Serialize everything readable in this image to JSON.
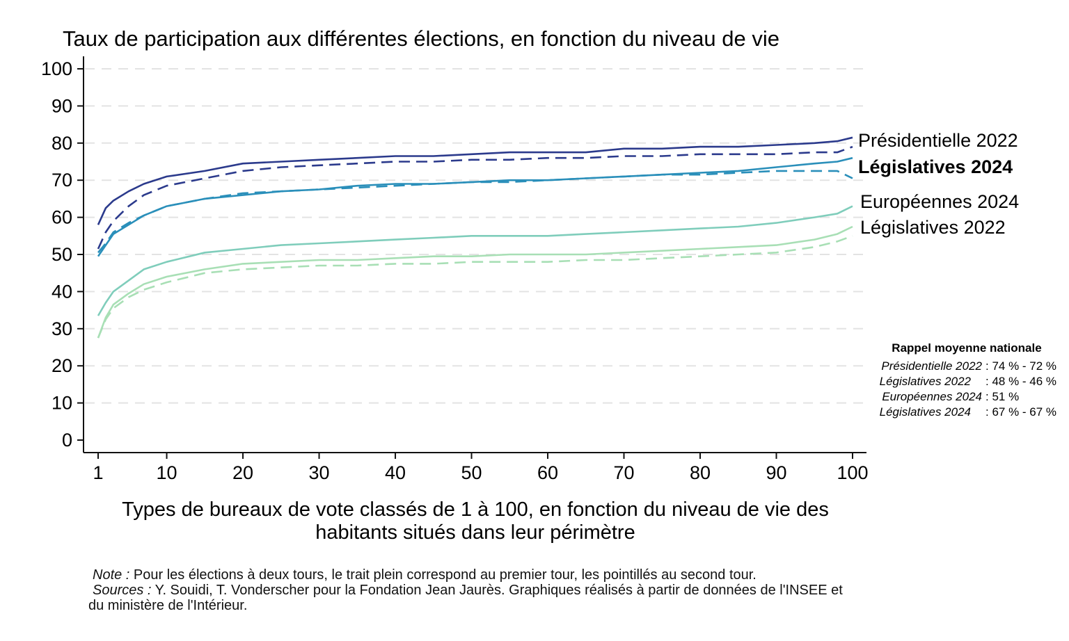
{
  "chart_data": {
    "type": "line",
    "title": "Taux de participation aux différentes élections, en fonction du niveau de vie",
    "xlabel_lines": [
      "Types de bureaux de vote classés de 1 à 100, en fonction du niveau de vie des",
      "habitants situés dans leur périmètre"
    ],
    "ylabel": "",
    "xlim": [
      1,
      100
    ],
    "ylim": [
      0,
      100
    ],
    "x_ticks": [
      1,
      10,
      20,
      30,
      40,
      50,
      60,
      70,
      80,
      90,
      100
    ],
    "y_ticks": [
      0,
      10,
      20,
      30,
      40,
      50,
      60,
      70,
      80,
      90,
      100
    ],
    "grid": "horizontal dashed",
    "series": [
      {
        "name": "Présidentielle 2022",
        "tour": "premier",
        "style": "solid",
        "color": "#2b3a8c",
        "x": [
          1,
          2,
          3,
          5,
          7,
          10,
          15,
          20,
          25,
          30,
          35,
          40,
          45,
          50,
          55,
          60,
          65,
          70,
          75,
          80,
          85,
          90,
          95,
          98,
          100
        ],
        "y": [
          58,
          62.5,
          64.5,
          67,
          69,
          71,
          72.5,
          74.5,
          75,
          75.5,
          76,
          76.5,
          76.5,
          77,
          77.5,
          77.5,
          77.5,
          78.5,
          78.5,
          79,
          79,
          79.5,
          80,
          80.5,
          81.5
        ]
      },
      {
        "name": "Présidentielle 2022",
        "tour": "second",
        "style": "dashed",
        "color": "#2b3a8c",
        "x": [
          1,
          2,
          3,
          5,
          7,
          10,
          15,
          20,
          25,
          30,
          35,
          40,
          45,
          50,
          55,
          60,
          65,
          70,
          75,
          80,
          85,
          90,
          95,
          98,
          100
        ],
        "y": [
          51.5,
          56,
          59,
          63,
          66,
          68.5,
          70.5,
          72.5,
          73.5,
          74,
          74.5,
          75,
          75,
          75.5,
          75.5,
          76,
          76,
          76.5,
          76.5,
          77,
          77,
          77,
          77.5,
          77.5,
          79
        ]
      },
      {
        "name": "Législatives 2024",
        "tour": "premier",
        "style": "solid",
        "color": "#2a8fba",
        "x": [
          1,
          2,
          3,
          5,
          7,
          10,
          15,
          20,
          25,
          30,
          35,
          40,
          45,
          50,
          55,
          60,
          65,
          70,
          75,
          80,
          85,
          90,
          95,
          98,
          100
        ],
        "y": [
          49.5,
          52.5,
          55.5,
          58,
          60.5,
          63,
          65,
          66,
          67,
          67.5,
          68.5,
          69,
          69,
          69.5,
          70,
          70,
          70.5,
          71,
          71.5,
          72,
          72.5,
          73.5,
          74.5,
          75,
          76
        ]
      },
      {
        "name": "Législatives 2024",
        "tour": "second",
        "style": "dashed",
        "color": "#2a8fba",
        "x": [
          1,
          2,
          3,
          5,
          7,
          10,
          15,
          20,
          25,
          30,
          35,
          40,
          45,
          50,
          55,
          60,
          65,
          70,
          75,
          80,
          85,
          90,
          95,
          98,
          100
        ],
        "y": [
          50.5,
          53,
          56,
          58.5,
          60.5,
          63,
          65,
          66.5,
          67,
          67.5,
          68,
          68.5,
          69,
          69.5,
          69.5,
          70,
          70.5,
          71,
          71.5,
          71.5,
          72,
          72.5,
          72.5,
          72.5,
          70.5
        ]
      },
      {
        "name": "Européennes 2024",
        "tour": "unique",
        "style": "solid",
        "color": "#7fcdbb",
        "x": [
          1,
          2,
          3,
          5,
          7,
          10,
          15,
          20,
          25,
          30,
          35,
          40,
          45,
          50,
          55,
          60,
          65,
          70,
          75,
          80,
          85,
          90,
          95,
          98,
          100
        ],
        "y": [
          33.5,
          37,
          40,
          43,
          46,
          48,
          50.5,
          51.5,
          52.5,
          53,
          53.5,
          54,
          54.5,
          55,
          55,
          55,
          55.5,
          56,
          56.5,
          57,
          57.5,
          58.5,
          60,
          61,
          63
        ]
      },
      {
        "name": "Législatives 2022",
        "tour": "premier",
        "style": "solid",
        "color": "#a8dfb5",
        "x": [
          1,
          2,
          3,
          5,
          7,
          10,
          15,
          20,
          25,
          30,
          35,
          40,
          45,
          50,
          55,
          60,
          65,
          70,
          75,
          80,
          85,
          90,
          95,
          98,
          100
        ],
        "y": [
          27.5,
          33,
          36.5,
          39.5,
          42,
          44,
          46,
          47.5,
          48,
          48.5,
          48.5,
          49,
          49.5,
          49.5,
          50,
          50,
          50,
          50.5,
          51,
          51.5,
          52,
          52.5,
          54,
          55.5,
          57.5
        ]
      },
      {
        "name": "Législatives 2022",
        "tour": "second",
        "style": "dashed",
        "color": "#a8dfb5",
        "x": [
          1,
          2,
          3,
          5,
          7,
          10,
          15,
          20,
          25,
          30,
          35,
          40,
          45,
          50,
          55,
          60,
          65,
          70,
          75,
          80,
          85,
          90,
          95,
          98,
          100
        ],
        "y": [
          27.5,
          32.5,
          35.5,
          38.5,
          40.5,
          42.5,
          45,
          46,
          46.5,
          47,
          47,
          47.5,
          47.5,
          48,
          48,
          48,
          48.5,
          48.5,
          49,
          49.5,
          50,
          50.5,
          52,
          53.5,
          55
        ]
      }
    ],
    "series_labels": [
      {
        "text": "Présidentielle 2022",
        "bold": false
      },
      {
        "text": "Législatives 2024",
        "bold": true
      },
      {
        "text": "Européennes 2024",
        "bold": false
      },
      {
        "text": "Législatives 2022",
        "bold": false
      }
    ],
    "recap": {
      "title": "Rappel moyenne nationale",
      "rows": [
        {
          "name": "Présidentielle 2022",
          "value": ": 74 % - 72 %"
        },
        {
          "name": "Législatives 2022",
          "value": ": 48 % - 46 %"
        },
        {
          "name": "Européennes 2024",
          "value": ": 51 %"
        },
        {
          "name": "Législatives 2024",
          "value": ": 67 % - 67 %"
        }
      ]
    }
  },
  "notes": {
    "note_label": "Note :",
    "note_text": " Pour les élections à deux tours, le trait plein correspond au premier tour, les pointillés au second tour.",
    "sources_label": "Sources :",
    "sources_text": " Y. Souidi, T. Vonderscher pour la Fondation Jean Jaurès. Graphiques réalisés à partir de données de l'INSEE et",
    "sources_text2": "du ministère de l'Intérieur."
  }
}
